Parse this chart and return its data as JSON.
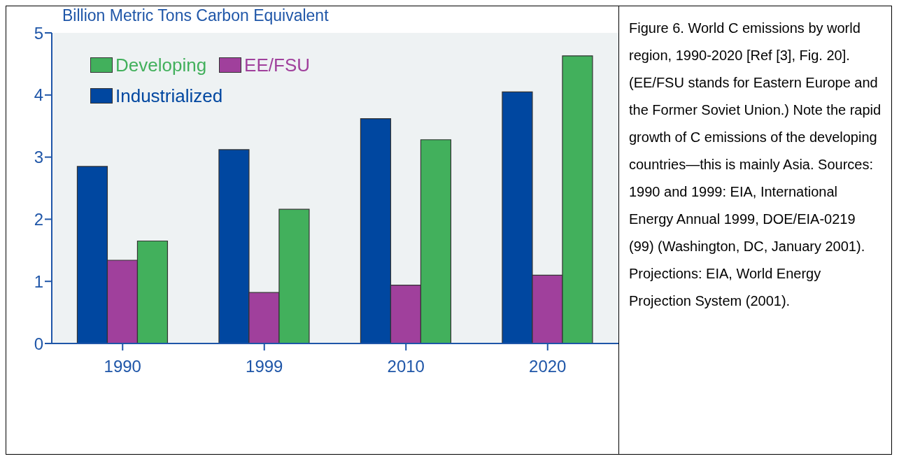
{
  "chart_data": {
    "type": "bar",
    "ylabel": "Billion Metric Tons Carbon Equivalent",
    "categories": [
      "1990",
      "1999",
      "2010",
      "2020"
    ],
    "series": [
      {
        "name": "Industrialized",
        "color": "#0047a0",
        "values": [
          2.85,
          3.12,
          3.62,
          4.05
        ]
      },
      {
        "name": "EE/FSU",
        "color": "#a0409c",
        "values": [
          1.34,
          0.82,
          0.94,
          1.1
        ]
      },
      {
        "name": "Developing",
        "color": "#42b05c",
        "values": [
          1.65,
          2.16,
          3.28,
          4.63
        ]
      }
    ],
    "ylim": [
      0,
      5
    ],
    "yticks": [
      0,
      1,
      2,
      3,
      4,
      5
    ],
    "grid": false,
    "legend": "top left",
    "annotations": [
      "Figure 6. World C emissions by world region, 1990-2020 [Ref [3], Fig. 20]. (EE/FSU stands for Eastern Europe and the Former Soviet Union.) Note the rapid growth of C emissions of the developing countries—this is mainly Asia. Sources: 1990 and 1999: EIA, International Energy Annual 1999, DOE/EIA-0219 (99) (Washington, DC, January 2001). Projections: EIA, World Energy Projection System (2001)."
    ]
  }
}
